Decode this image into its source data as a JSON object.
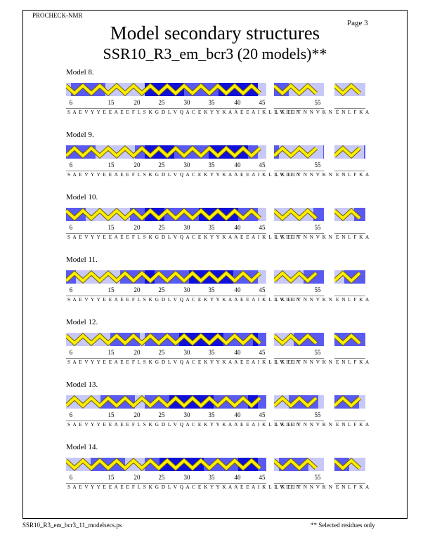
{
  "header": {
    "program": "PROCHECK-NMR",
    "page": "Page  3"
  },
  "title": "Model secondary structures",
  "subtitle": "SSR10_R3_em_bcr3 (20 models)**",
  "footer": {
    "filename": "SSR10_R3_em_bcr3_11_modelsecs.ps",
    "note": "** Selected residues only"
  },
  "tick_labels": [
    "6",
    "15",
    "20",
    "25",
    "30",
    "35",
    "40",
    "45",
    "55"
  ],
  "sequences": [
    "S A E V Y Y E E A E E F L S K G D L V Q A C E K Y Y K A A E E A I K L L V I E N",
    "L K E I T N N V K N",
    "E N L F K A"
  ],
  "colors": {
    "shade_dark": "#1010d8",
    "shade_mid": "#5a5af0",
    "shade_light": "#c8c8f8",
    "helix": "#ffee00",
    "helix_edge": "#6a6000"
  },
  "models": [
    {
      "label": "Model  8."
    },
    {
      "label": "Model  9."
    },
    {
      "label": "Model 10."
    },
    {
      "label": "Model 11."
    },
    {
      "label": "Model 12."
    },
    {
      "label": "Model 13."
    },
    {
      "label": "Model 14."
    }
  ]
}
